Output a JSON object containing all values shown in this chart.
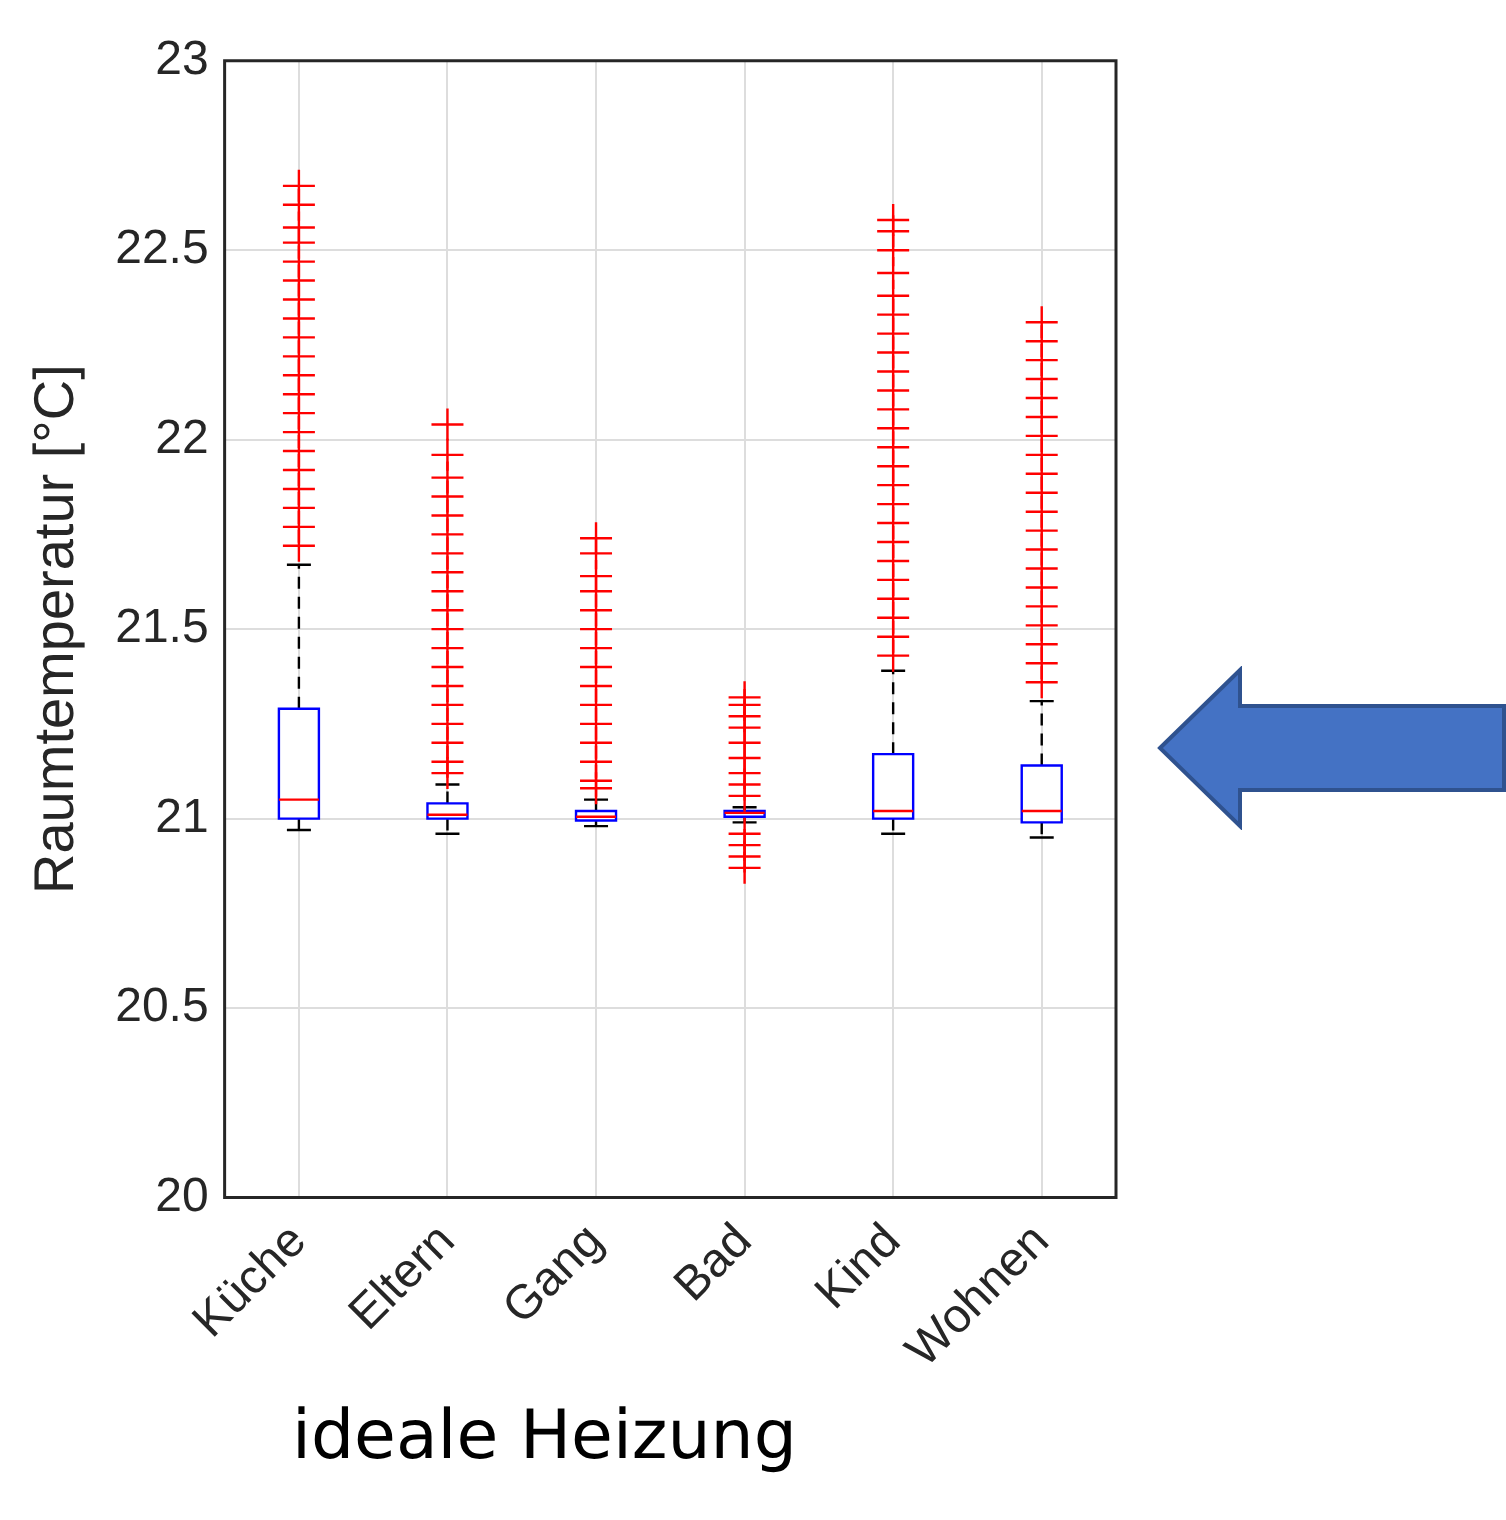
{
  "chart_data": {
    "type": "box",
    "ylabel": "Raumtemperatur [°C]",
    "categories": [
      "Küche",
      "Eltern",
      "Gang",
      "Bad",
      "Kind",
      "Wohnen"
    ],
    "ylim": [
      20,
      23
    ],
    "yticks": [
      20,
      20.5,
      21,
      21.5,
      22,
      22.5,
      23
    ],
    "grid": true,
    "marker": "cross",
    "annotations": [
      "ideale Heizung"
    ],
    "boxes": [
      {
        "low": 20.97,
        "q1": 21.0,
        "median": 21.05,
        "q3": 21.29,
        "high": 21.67,
        "outliers": [
          21.72,
          21.77,
          21.82,
          21.87,
          21.92,
          21.97,
          22.02,
          22.07,
          22.12,
          22.17,
          22.22,
          22.27,
          22.32,
          22.37,
          22.42,
          22.47,
          22.52,
          22.56,
          22.62,
          22.67
        ]
      },
      {
        "low": 20.96,
        "q1": 21.0,
        "median": 21.01,
        "q3": 21.04,
        "high": 21.09,
        "outliers": [
          21.12,
          21.15,
          21.2,
          21.25,
          21.3,
          21.35,
          21.4,
          21.45,
          21.5,
          21.55,
          21.6,
          21.65,
          21.7,
          21.75,
          21.8,
          21.85,
          21.9,
          21.96,
          22.04
        ]
      },
      {
        "low": 20.98,
        "q1": 20.995,
        "median": 21.005,
        "q3": 21.02,
        "high": 21.05,
        "outliers": [
          21.08,
          21.1,
          21.15,
          21.2,
          21.25,
          21.3,
          21.35,
          21.4,
          21.45,
          21.5,
          21.55,
          21.6,
          21.64,
          21.7,
          21.74
        ]
      },
      {
        "low": 20.99,
        "q1": 21.005,
        "median": 21.015,
        "q3": 21.02,
        "high": 21.03,
        "outliers": [
          20.87,
          20.9,
          20.93,
          20.96,
          21.06,
          21.09,
          21.12,
          21.16,
          21.2,
          21.24,
          21.27,
          21.3,
          21.32
        ]
      },
      {
        "low": 20.96,
        "q1": 21.0,
        "median": 21.02,
        "q3": 21.17,
        "high": 21.39,
        "outliers": [
          21.43,
          21.48,
          21.53,
          21.58,
          21.63,
          21.68,
          21.73,
          21.78,
          21.83,
          21.88,
          21.93,
          21.98,
          22.03,
          22.08,
          22.13,
          22.18,
          22.23,
          22.28,
          22.33,
          22.38,
          22.44,
          22.5,
          22.55,
          22.58
        ]
      },
      {
        "low": 20.95,
        "q1": 20.99,
        "median": 21.02,
        "q3": 21.14,
        "high": 21.31,
        "outliers": [
          21.36,
          21.41,
          21.46,
          21.51,
          21.56,
          21.61,
          21.66,
          21.71,
          21.76,
          21.81,
          21.86,
          21.91,
          21.96,
          22.01,
          22.06,
          22.11,
          22.16,
          22.21,
          22.26,
          22.31
        ]
      }
    ]
  }
}
